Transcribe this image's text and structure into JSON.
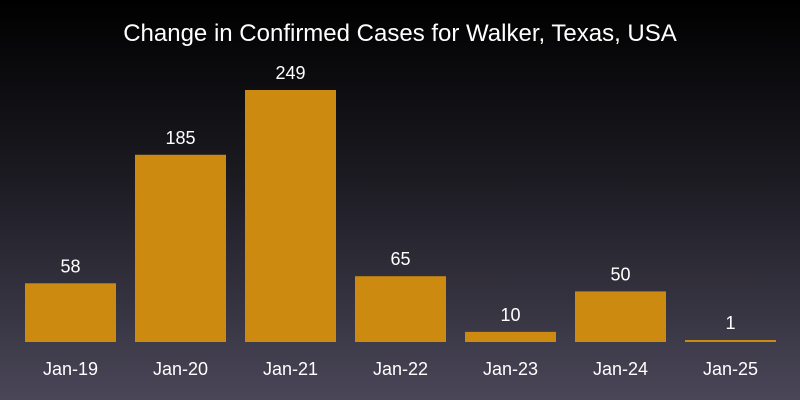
{
  "chart_data": {
    "type": "bar",
    "title": "Change in Confirmed Cases for Walker, Texas, USA",
    "xlabel": "",
    "ylabel": "",
    "categories": [
      "Jan-19",
      "Jan-20",
      "Jan-21",
      "Jan-22",
      "Jan-23",
      "Jan-24",
      "Jan-25"
    ],
    "values": [
      58,
      185,
      249,
      65,
      10,
      50,
      1
    ],
    "ylim": [
      0,
      249
    ],
    "grid": false,
    "bar_color": "#cc8b10",
    "background_colors": [
      "#000000",
      "#4a4658"
    ]
  }
}
